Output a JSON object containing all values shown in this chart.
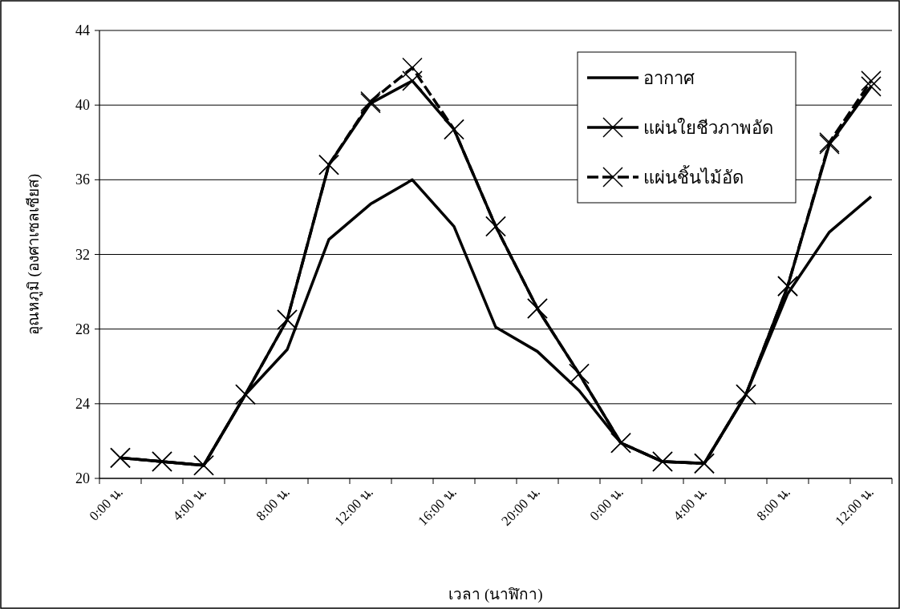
{
  "chart_data": {
    "type": "line",
    "xlabel": "เวลา (นาฬิกา)",
    "ylabel": "อุณหภูมิ (องศาเซลเซียส)",
    "categories": [
      "0:00 น.",
      null,
      "4:00 น.",
      null,
      "8:00 น.",
      null,
      "12:00 น.",
      null,
      "16:00 น.",
      null,
      "20:00 น.",
      null,
      "0:00 น.",
      null,
      "4:00 น.",
      null,
      "8:00 น.",
      null,
      "12:00 น."
    ],
    "ylim": [
      20,
      44
    ],
    "yticks": [
      20,
      24,
      28,
      32,
      36,
      40,
      44
    ],
    "grid": "y",
    "legend": "top right",
    "series": [
      {
        "name": "อากาศ",
        "color": "#000000",
        "marker": "none",
        "line_style": "solid",
        "values": [
          21.1,
          20.9,
          20.7,
          24.5,
          26.9,
          32.8,
          34.7,
          36.0,
          33.5,
          28.1,
          26.8,
          24.7,
          21.9,
          20.9,
          20.8,
          24.5,
          29.9,
          33.2,
          35.1
        ]
      },
      {
        "name": "แผ่นใยชีวภาพอัด",
        "color": "#000000",
        "marker": "cross",
        "line_style": "solid",
        "values": [
          21.1,
          20.9,
          20.7,
          24.5,
          28.5,
          36.8,
          40.1,
          41.3,
          38.7,
          33.5,
          29.1,
          25.6,
          21.9,
          20.9,
          20.8,
          24.5,
          30.3,
          37.9,
          41.0
        ]
      },
      {
        "name": "แผ่นชิ้นไม้อัด",
        "color": "#000000",
        "marker": "cross",
        "line_style": "dashed",
        "values": [
          21.1,
          20.9,
          20.7,
          24.5,
          28.5,
          36.8,
          40.2,
          42.0,
          38.7,
          33.5,
          29.1,
          25.6,
          21.9,
          20.9,
          20.8,
          24.5,
          30.3,
          38.0,
          41.3
        ]
      }
    ]
  }
}
